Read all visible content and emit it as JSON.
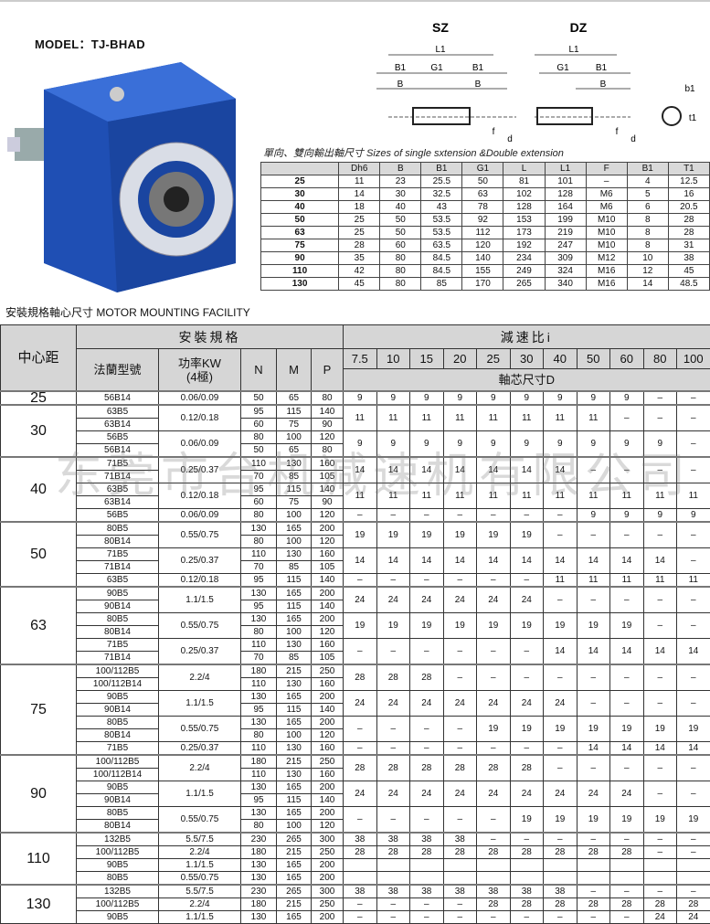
{
  "model_title": "MODEL：TJ-BHAD",
  "diagram": {
    "sz_label": "SZ",
    "dz_label": "DZ",
    "dims": [
      "L1",
      "B1",
      "G1",
      "B",
      "f",
      "d",
      "b1",
      "t1"
    ]
  },
  "caption": "單向、雙向輸出軸尺寸  Sizes of single sxtension &Double extension",
  "shaft_table": {
    "headers": [
      "",
      "Dh6",
      "B",
      "B1",
      "G1",
      "L",
      "L1",
      "F",
      "B1",
      "T1"
    ],
    "rows": [
      [
        "25",
        "11",
        "23",
        "25.5",
        "50",
        "81",
        "101",
        "–",
        "4",
        "12.5"
      ],
      [
        "30",
        "14",
        "30",
        "32.5",
        "63",
        "102",
        "128",
        "M6",
        "5",
        "16"
      ],
      [
        "40",
        "18",
        "40",
        "43",
        "78",
        "128",
        "164",
        "M6",
        "6",
        "20.5"
      ],
      [
        "50",
        "25",
        "50",
        "53.5",
        "92",
        "153",
        "199",
        "M10",
        "8",
        "28"
      ],
      [
        "63",
        "25",
        "50",
        "53.5",
        "112",
        "173",
        "219",
        "M10",
        "8",
        "28"
      ],
      [
        "75",
        "28",
        "60",
        "63.5",
        "120",
        "192",
        "247",
        "M10",
        "8",
        "31"
      ],
      [
        "90",
        "35",
        "80",
        "84.5",
        "140",
        "234",
        "309",
        "M12",
        "10",
        "38"
      ],
      [
        "110",
        "42",
        "80",
        "84.5",
        "155",
        "249",
        "324",
        "M16",
        "12",
        "45"
      ],
      [
        "130",
        "45",
        "80",
        "85",
        "170",
        "265",
        "340",
        "M16",
        "14",
        "48.5"
      ]
    ]
  },
  "mounting_title": "安裝規格軸心尺寸 MOTOR MOUNTING FACILITY",
  "mounting_table": {
    "h_center": "中心距",
    "h_install": "安裝規格",
    "h_flange": "法蘭型號",
    "h_power": "功率KW\n(4極)",
    "h_n": "N",
    "h_m": "M",
    "h_p": "P",
    "h_ratio": "減速比i",
    "ratios": [
      "7.5",
      "10",
      "15",
      "20",
      "25",
      "30",
      "40",
      "50",
      "60",
      "80",
      "100"
    ],
    "h_shaft": "軸芯尺寸D",
    "groups": [
      {
        "center": "25",
        "flanges": [
          [
            "56B14",
            "50",
            "65",
            "80"
          ]
        ],
        "power": [
          [
            "0.06/0.09",
            1
          ]
        ],
        "d": [
          [
            [
              "9",
              "9",
              "9",
              "9",
              "9",
              "9",
              "9",
              "9",
              "9",
              "–",
              "–"
            ],
            1
          ]
        ]
      },
      {
        "center": "30",
        "flanges": [
          [
            "63B5",
            "95",
            "115",
            "140"
          ],
          [
            "63B14",
            "60",
            "75",
            "90"
          ],
          [
            "56B5",
            "80",
            "100",
            "120"
          ],
          [
            "56B14",
            "50",
            "65",
            "80"
          ]
        ],
        "power": [
          [
            "0.12/0.18",
            2
          ],
          [
            "0.06/0.09",
            2
          ]
        ],
        "d": [
          [
            [
              "11",
              "11",
              "11",
              "11",
              "11",
              "11",
              "11",
              "11",
              "–",
              "–",
              "–"
            ],
            2
          ],
          [
            [
              "9",
              "9",
              "9",
              "9",
              "9",
              "9",
              "9",
              "9",
              "9",
              "9",
              "–"
            ],
            2
          ]
        ]
      },
      {
        "center": "40",
        "flanges": [
          [
            "71B5",
            "110",
            "130",
            "160"
          ],
          [
            "71B14",
            "70",
            "85",
            "105"
          ],
          [
            "63B5",
            "95",
            "115",
            "140"
          ],
          [
            "63B14",
            "60",
            "75",
            "90"
          ],
          [
            "56B5",
            "80",
            "100",
            "120"
          ]
        ],
        "power": [
          [
            "0.25/0.37",
            2
          ],
          [
            "0.12/0.18",
            2
          ],
          [
            "0.06/0.09",
            1
          ]
        ],
        "d": [
          [
            [
              "14",
              "14",
              "14",
              "14",
              "14",
              "14",
              "14",
              "–",
              "–",
              "–",
              "–"
            ],
            2
          ],
          [
            [
              "11",
              "11",
              "11",
              "11",
              "11",
              "11",
              "11",
              "11",
              "11",
              "11",
              "11"
            ],
            2
          ],
          [
            [
              "–",
              "–",
              "–",
              "–",
              "–",
              "–",
              "–",
              "9",
              "9",
              "9",
              "9"
            ],
            1
          ]
        ]
      },
      {
        "center": "50",
        "flanges": [
          [
            "80B5",
            "130",
            "165",
            "200"
          ],
          [
            "80B14",
            "80",
            "100",
            "120"
          ],
          [
            "71B5",
            "110",
            "130",
            "160"
          ],
          [
            "71B14",
            "70",
            "85",
            "105"
          ],
          [
            "63B5",
            "95",
            "115",
            "140"
          ]
        ],
        "power": [
          [
            "0.55/0.75",
            2
          ],
          [
            "0.25/0.37",
            2
          ],
          [
            "0.12/0.18",
            1
          ]
        ],
        "d": [
          [
            [
              "19",
              "19",
              "19",
              "19",
              "19",
              "19",
              "–",
              "–",
              "–",
              "–",
              "–"
            ],
            2
          ],
          [
            [
              "14",
              "14",
              "14",
              "14",
              "14",
              "14",
              "14",
              "14",
              "14",
              "14",
              "–"
            ],
            2
          ],
          [
            [
              "–",
              "–",
              "–",
              "–",
              "–",
              "–",
              "11",
              "11",
              "11",
              "11",
              "11"
            ],
            1
          ]
        ]
      },
      {
        "center": "63",
        "flanges": [
          [
            "90B5",
            "130",
            "165",
            "200"
          ],
          [
            "90B14",
            "95",
            "115",
            "140"
          ],
          [
            "80B5",
            "130",
            "165",
            "200"
          ],
          [
            "80B14",
            "80",
            "100",
            "120"
          ],
          [
            "71B5",
            "110",
            "130",
            "160"
          ],
          [
            "71B14",
            "70",
            "85",
            "105"
          ]
        ],
        "power": [
          [
            "1.1/1.5",
            2
          ],
          [
            "0.55/0.75",
            2
          ],
          [
            "0.25/0.37",
            2
          ]
        ],
        "d": [
          [
            [
              "24",
              "24",
              "24",
              "24",
              "24",
              "24",
              "–",
              "–",
              "–",
              "–",
              "–"
            ],
            2
          ],
          [
            [
              "19",
              "19",
              "19",
              "19",
              "19",
              "19",
              "19",
              "19",
              "19",
              "–",
              "–"
            ],
            2
          ],
          [
            [
              "–",
              "–",
              "–",
              "–",
              "–",
              "–",
              "14",
              "14",
              "14",
              "14",
              "14"
            ],
            2
          ]
        ]
      },
      {
        "center": "75",
        "flanges": [
          [
            "100/112B5",
            "180",
            "215",
            "250"
          ],
          [
            "100/112B14",
            "110",
            "130",
            "160"
          ],
          [
            "90B5",
            "130",
            "165",
            "200"
          ],
          [
            "90B14",
            "95",
            "115",
            "140"
          ],
          [
            "80B5",
            "130",
            "165",
            "200"
          ],
          [
            "80B14",
            "80",
            "100",
            "120"
          ],
          [
            "71B5",
            "110",
            "130",
            "160"
          ]
        ],
        "power": [
          [
            "2.2/4",
            2
          ],
          [
            "1.1/1.5",
            2
          ],
          [
            "0.55/0.75",
            2
          ],
          [
            "0.25/0.37",
            1
          ]
        ],
        "d": [
          [
            [
              "28",
              "28",
              "28",
              "–",
              "–",
              "–",
              "–",
              "–",
              "–",
              "–",
              "–"
            ],
            2
          ],
          [
            [
              "24",
              "24",
              "24",
              "24",
              "24",
              "24",
              "24",
              "–",
              "–",
              "–",
              "–"
            ],
            2
          ],
          [
            [
              "–",
              "–",
              "–",
              "–",
              "19",
              "19",
              "19",
              "19",
              "19",
              "19",
              "19"
            ],
            2
          ],
          [
            [
              "–",
              "–",
              "–",
              "–",
              "–",
              "–",
              "–",
              "14",
              "14",
              "14",
              "14"
            ],
            1
          ]
        ]
      },
      {
        "center": "90",
        "flanges": [
          [
            "100/112B5",
            "180",
            "215",
            "250"
          ],
          [
            "100/112B14",
            "110",
            "130",
            "160"
          ],
          [
            "90B5",
            "130",
            "165",
            "200"
          ],
          [
            "90B14",
            "95",
            "115",
            "140"
          ],
          [
            "80B5",
            "130",
            "165",
            "200"
          ],
          [
            "80B14",
            "80",
            "100",
            "120"
          ]
        ],
        "power": [
          [
            "2.2/4",
            2
          ],
          [
            "1.1/1.5",
            2
          ],
          [
            "0.55/0.75",
            2
          ]
        ],
        "d": [
          [
            [
              "28",
              "28",
              "28",
              "28",
              "28",
              "28",
              "–",
              "–",
              "–",
              "–",
              "–"
            ],
            2
          ],
          [
            [
              "24",
              "24",
              "24",
              "24",
              "24",
              "24",
              "24",
              "24",
              "24",
              "–",
              "–"
            ],
            2
          ],
          [
            [
              "–",
              "–",
              "–",
              "–",
              "–",
              "19",
              "19",
              "19",
              "19",
              "19",
              "19"
            ],
            2
          ]
        ]
      },
      {
        "center": "110",
        "flanges": [
          [
            "132B5",
            "230",
            "265",
            "300"
          ],
          [
            "100/112B5",
            "180",
            "215",
            "250"
          ],
          [
            "90B5",
            "130",
            "165",
            "200"
          ],
          [
            "80B5",
            "130",
            "165",
            "200"
          ]
        ],
        "power": [
          [
            "5.5/7.5",
            1
          ],
          [
            "2.2/4",
            1
          ],
          [
            "1.1/1.5",
            1
          ],
          [
            "0.55/0.75",
            1
          ]
        ],
        "d": [
          [
            [
              "38",
              "38",
              "38",
              "38",
              "–",
              "–",
              "–",
              "–",
              "–",
              "–",
              "–"
            ],
            1
          ],
          [
            [
              "28",
              "28",
              "28",
              "28",
              "28",
              "28",
              "28",
              "28",
              "28",
              "–",
              "–"
            ],
            1
          ],
          [
            [
              "",
              "",
              "",
              "",
              "",
              "",
              "",
              "",
              "",
              "",
              ""
            ],
            1
          ],
          [
            [
              "",
              "",
              "",
              "",
              "",
              "",
              "",
              "",
              "",
              "",
              ""
            ],
            1
          ]
        ]
      },
      {
        "center": "130",
        "flanges": [
          [
            "132B5",
            "230",
            "265",
            "300"
          ],
          [
            "100/112B5",
            "180",
            "215",
            "250"
          ],
          [
            "90B5",
            "130",
            "165",
            "200"
          ]
        ],
        "power": [
          [
            "5.5/7.5",
            1
          ],
          [
            "2.2/4",
            1
          ],
          [
            "1.1/1.5",
            1
          ]
        ],
        "d": [
          [
            [
              "38",
              "38",
              "38",
              "38",
              "38",
              "38",
              "38",
              "–",
              "–",
              "–",
              "–"
            ],
            1
          ],
          [
            [
              "–",
              "–",
              "–",
              "–",
              "28",
              "28",
              "28",
              "28",
              "28",
              "28",
              "28"
            ],
            1
          ],
          [
            [
              "–",
              "–",
              "–",
              "–",
              "–",
              "–",
              "–",
              "–",
              "–",
              "24",
              "24"
            ],
            1
          ]
        ]
      }
    ]
  },
  "watermark": "东莞市台机减速机有限公司",
  "colors": {
    "gearbox_blue": "#1f4fb4",
    "header_gray": "#d6d6d6"
  }
}
